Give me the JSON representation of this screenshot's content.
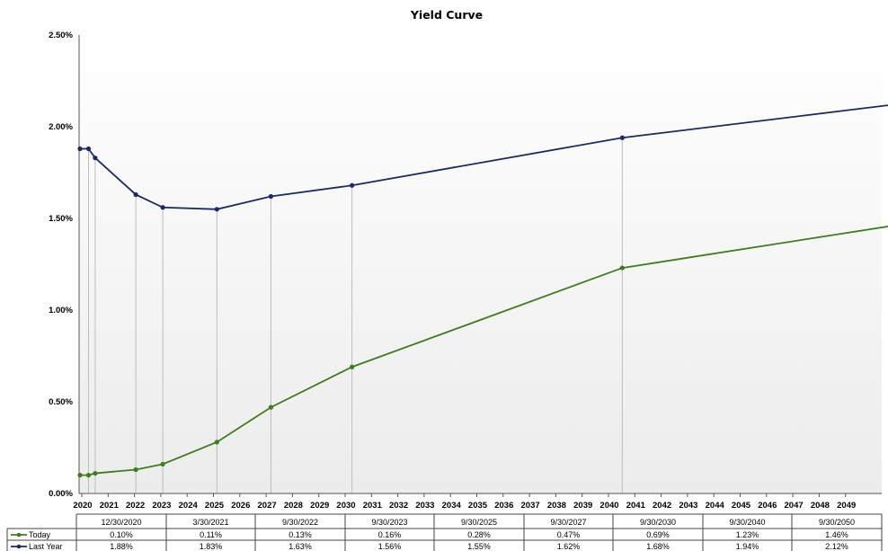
{
  "chart_data": {
    "type": "line",
    "title": "Yield Curve",
    "xlabel": "",
    "ylabel": "",
    "ylim": [
      0,
      0.025
    ],
    "y_ticks": [
      "0.00%",
      "0.50%",
      "1.00%",
      "1.50%",
      "2.00%",
      "2.50%"
    ],
    "x_ticks": [
      "2020",
      "2021",
      "2022",
      "2023",
      "2024",
      "2025",
      "2026",
      "2027",
      "2028",
      "2029",
      "2030",
      "2031",
      "2032",
      "2033",
      "2034",
      "2035",
      "2036",
      "2037",
      "2038",
      "2039",
      "2040",
      "2041",
      "2042",
      "2043",
      "2044",
      "2045",
      "2046",
      "2047",
      "2048",
      "2049"
    ],
    "x_dates": [
      "2020-09-30",
      "2020-12-30",
      "2021-03-30",
      "2022-09-30",
      "2023-09-30",
      "2025-09-30",
      "2027-09-30",
      "2030-09-30",
      "2040-09-30",
      "2050-09-30"
    ],
    "table_dates": [
      "12/30/2020",
      "3/30/2021",
      "9/30/2022",
      "9/30/2023",
      "9/30/2025",
      "9/30/2027",
      "9/30/2030",
      "9/30/2040",
      "9/30/2050"
    ],
    "grid": false,
    "legend": "bottom-left",
    "series": [
      {
        "name": "Today",
        "color": "#3f7b1f",
        "values": [
          0.001,
          0.001,
          0.0011,
          0.0013,
          0.0016,
          0.0028,
          0.0047,
          0.0069,
          0.0123,
          0.0146
        ],
        "table_values": [
          "0.10%",
          "0.11%",
          "0.13%",
          "0.16%",
          "0.28%",
          "0.47%",
          "0.69%",
          "1.23%",
          "1.46%"
        ]
      },
      {
        "name": "Last Year",
        "color": "#1c2a66",
        "values": [
          0.0188,
          0.0188,
          0.0183,
          0.0163,
          0.0156,
          0.0155,
          0.0162,
          0.0168,
          0.0194,
          0.0212
        ],
        "table_values": [
          "1.88%",
          "1.83%",
          "1.63%",
          "1.56%",
          "1.55%",
          "1.62%",
          "1.68%",
          "1.94%",
          "2.12%"
        ]
      }
    ]
  }
}
